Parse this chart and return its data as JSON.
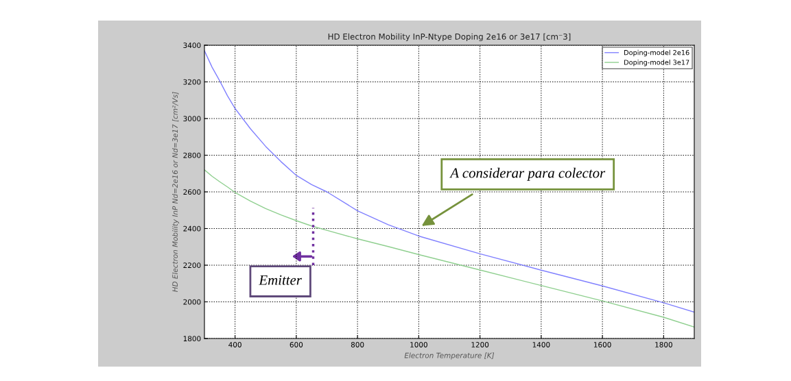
{
  "chart_data": {
    "type": "line",
    "title": "HD Electron Mobility InP-Ntype Doping 2e16 or 3e17 [cm⁻3]",
    "xlabel": "Electron Temperature [K]",
    "ylabel": "HD Electron Mobility InP Nd=2e16 or Nd=3e17 [cm²/Vs]",
    "x": [
      300,
      325,
      350,
      375,
      400,
      450,
      500,
      550,
      600,
      650,
      700,
      800,
      900,
      1000,
      1200,
      1400,
      1600,
      1800,
      1900
    ],
    "series": [
      {
        "name": "Doping-model 2e16",
        "color": "#8080ff",
        "values": [
          3370,
          3280,
          3205,
          3125,
          3055,
          2945,
          2848,
          2765,
          2690,
          2640,
          2600,
          2497,
          2421,
          2359,
          2262,
          2173,
          2087,
          1995,
          1944
        ]
      },
      {
        "name": "Doping-model 3e17",
        "color": "#8fcf8f",
        "values": [
          2720,
          2685,
          2655,
          2627,
          2597,
          2550,
          2509,
          2474,
          2443,
          2414,
          2390,
          2344,
          2302,
          2258,
          2174,
          2089,
          2005,
          1916,
          1863
        ]
      }
    ],
    "xlim": [
      300,
      1900
    ],
    "xticks": [
      400,
      600,
      800,
      1000,
      1200,
      1400,
      1600,
      1800
    ],
    "ylim": [
      1800,
      3400
    ],
    "yticks": [
      1800,
      2000,
      2200,
      2400,
      2600,
      2800,
      3000,
      3200,
      3400
    ],
    "grid": true,
    "legend": "top right",
    "line_style": "solid",
    "marker": "none",
    "annotations": [
      "A considerar para colector",
      "Emitter"
    ]
  }
}
